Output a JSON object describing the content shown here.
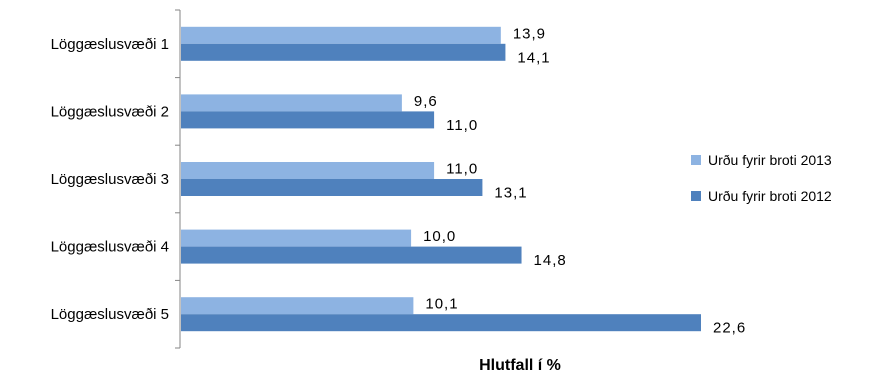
{
  "chart_data": {
    "type": "bar",
    "orientation": "horizontal",
    "categories": [
      "Löggæslusvæði 1",
      "Löggæslusvæði 2",
      "Löggæslusvæði 3",
      "Löggæslusvæði 4",
      "Löggæslusvæði 5"
    ],
    "series": [
      {
        "name": "Urðu fyrir broti 2013",
        "values": [
          13.9,
          9.6,
          11.0,
          10.0,
          10.1
        ],
        "labels": [
          "13,9",
          "9,6",
          "11,0",
          "10,0",
          "10,1"
        ],
        "color": "#8DB3E2"
      },
      {
        "name": "Urðu fyrir broti 2012",
        "values": [
          14.1,
          11.0,
          13.1,
          14.8,
          22.6
        ],
        "labels": [
          "14,1",
          "11,0",
          "13,1",
          "14,8",
          "22,6"
        ],
        "color": "#4F81BD"
      }
    ],
    "xlabel": "Hlutfall í %",
    "ylabel": "",
    "title": "",
    "xlim": [
      0,
      22.6
    ],
    "grid": false,
    "legend_position": "right"
  }
}
